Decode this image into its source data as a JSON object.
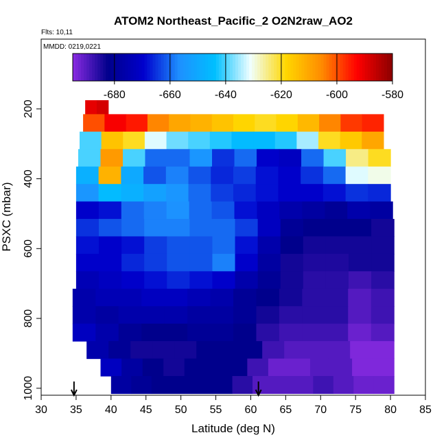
{
  "chart_data": {
    "type": "heatmap",
    "title": "ATOM2 Northeast_Pacific_2 O2N2raw_AO2",
    "info_lines": [
      "Flts: 10,11",
      "MMDD: 0219,0221"
    ],
    "xlabel": "Latitude (deg N)",
    "ylabel": "PSXC (mbar)",
    "xlim": [
      30,
      85
    ],
    "ylim": [
      1020,
      0
    ],
    "x_ticks": [
      30,
      35,
      40,
      45,
      50,
      55,
      60,
      65,
      70,
      75,
      80,
      85
    ],
    "y_ticks": [
      200,
      400,
      600,
      800,
      1000
    ],
    "colorbar": {
      "range": [
        -695,
        -580
      ],
      "ticks": [
        -680,
        -660,
        -640,
        -620,
        -600,
        -580
      ],
      "colors": [
        "#8a2be2",
        "#00008b",
        "#0000cd",
        "#1e90ff",
        "#00bfff",
        "#f0ffff",
        "#ffd700",
        "#ff8c00",
        "#ff0000",
        "#8b0000"
      ]
    },
    "markers": [
      {
        "x": 34.7,
        "label": "arrow"
      },
      {
        "x": 61.1,
        "label": "arrow"
      }
    ],
    "rows": [
      {
        "p": 200,
        "lat0": 36.3,
        "lat1": 39.6,
        "v": [
          -590,
          -588
        ]
      },
      {
        "p": 240,
        "lat0": 36.0,
        "lat1": 79.0,
        "v": [
          -600,
          -592,
          -595,
          -605,
          -610,
          -612,
          -615,
          -618,
          -620,
          -618,
          -613,
          -605,
          -598,
          -596
        ]
      },
      {
        "p": 290,
        "lat0": 35.5,
        "lat1": 79.0,
        "v": [
          -640,
          -615,
          -620,
          -632,
          -638,
          -640,
          -642,
          -645,
          -645,
          -642,
          -635,
          -620,
          -616,
          -610
        ]
      },
      {
        "p": 340,
        "lat0": 35.3,
        "lat1": 80.0,
        "v": [
          -640,
          -608,
          -640,
          -660,
          -660,
          -655,
          -665,
          -660,
          -670,
          -672,
          -660,
          -640,
          -625,
          -620
        ]
      },
      {
        "p": 390,
        "lat0": 35.0,
        "lat1": 80.0,
        "v": [
          -648,
          -612,
          -650,
          -662,
          -658,
          -662,
          -666,
          -664,
          -668,
          -670,
          -665,
          -660,
          -632,
          -630
        ]
      },
      {
        "p": 440,
        "lat0": 35.0,
        "lat1": 80.0,
        "v": [
          -655,
          -645,
          -648,
          -652,
          -655,
          -660,
          -664,
          -666,
          -668,
          -670,
          -670,
          -668,
          -665,
          -666
        ]
      },
      {
        "p": 490,
        "lat0": 35.0,
        "lat1": 80.3,
        "v": [
          -670,
          -668,
          -660,
          -658,
          -656,
          -660,
          -662,
          -668,
          -672,
          -676,
          -678,
          -680,
          -676,
          -678
        ]
      },
      {
        "p": 540,
        "lat0": 35.0,
        "lat1": 80.5,
        "v": [
          -665,
          -662,
          -660,
          -658,
          -658,
          -660,
          -660,
          -664,
          -672,
          -680,
          -682,
          -682,
          -682,
          -684
        ]
      },
      {
        "p": 590,
        "lat0": 35.0,
        "lat1": 80.5,
        "v": [
          -668,
          -670,
          -668,
          -664,
          -662,
          -662,
          -660,
          -668,
          -676,
          -682,
          -684,
          -684,
          -684,
          -684
        ]
      },
      {
        "p": 640,
        "lat0": 35.0,
        "lat1": 80.5,
        "v": [
          -670,
          -670,
          -666,
          -664,
          -662,
          -662,
          -658,
          -670,
          -678,
          -684,
          -685,
          -685,
          -684,
          -684
        ]
      },
      {
        "p": 690,
        "lat0": 35.0,
        "lat1": 80.5,
        "v": [
          -674,
          -672,
          -670,
          -668,
          -666,
          -668,
          -670,
          -676,
          -680,
          -684,
          -686,
          -686,
          -688,
          -686
        ]
      },
      {
        "p": 740,
        "lat0": 34.5,
        "lat1": 80.5,
        "v": [
          -676,
          -674,
          -674,
          -672,
          -672,
          -674,
          -676,
          -680,
          -682,
          -684,
          -686,
          -686,
          -690,
          -688
        ]
      },
      {
        "p": 790,
        "lat0": 34.5,
        "lat1": 80.5,
        "v": [
          -676,
          -678,
          -676,
          -676,
          -676,
          -678,
          -678,
          -680,
          -684,
          -686,
          -686,
          -686,
          -690,
          -688
        ]
      },
      {
        "p": 840,
        "lat0": 34.5,
        "lat1": 80.5,
        "v": [
          -672,
          -676,
          -680,
          -682,
          -682,
          -680,
          -680,
          -682,
          -686,
          -688,
          -688,
          -688,
          -692,
          -690
        ]
      },
      {
        "p": 890,
        "lat0": 36.5,
        "lat1": 80.5,
        "v": [
          -676,
          -680,
          -684,
          -684,
          -684,
          -682,
          -682,
          -682,
          -688,
          -690,
          -690,
          -690,
          -694,
          -694
        ]
      },
      {
        "p": 940,
        "lat0": 38.5,
        "lat1": 80.5,
        "v": [
          -672,
          -678,
          -682,
          -684,
          -682,
          -682,
          -682,
          -688,
          -692,
          -692,
          -690,
          -690,
          -694,
          -694
        ]
      },
      {
        "p": 990,
        "lat0": 40.0,
        "lat1": 80.5,
        "v": [
          -678,
          -680,
          -682,
          -682,
          -682,
          -682,
          -686,
          -690,
          -690,
          -690,
          -688,
          -690,
          -692,
          -692
        ]
      }
    ]
  }
}
